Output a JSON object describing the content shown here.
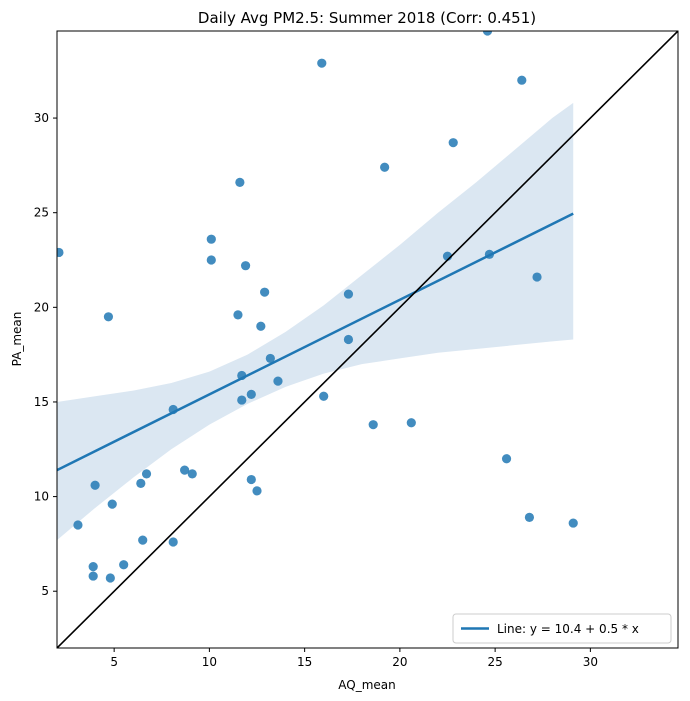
{
  "chart_data": {
    "type": "scatter",
    "title": "Daily Avg PM2.5: Summer 2018 (Corr: 0.451)",
    "xlabel": "AQ_mean",
    "ylabel": "PA_mean",
    "xlim": [
      2.0,
      34.6
    ],
    "ylim": [
      2.0,
      34.6
    ],
    "xticks": [
      5,
      10,
      15,
      20,
      25,
      30
    ],
    "yticks": [
      5,
      10,
      15,
      20,
      25,
      30
    ],
    "grid": false,
    "legend_position": "lower-right",
    "colors": {
      "points": "#2e7fb8",
      "regression_line": "#1f77b4",
      "confidence_band": "#dbe7f2",
      "identity_line": "#000000"
    },
    "points": [
      {
        "x": 2.1,
        "y": 22.9
      },
      {
        "x": 3.1,
        "y": 8.5
      },
      {
        "x": 3.9,
        "y": 5.8
      },
      {
        "x": 3.9,
        "y": 6.3
      },
      {
        "x": 4.0,
        "y": 10.6
      },
      {
        "x": 4.7,
        "y": 19.5
      },
      {
        "x": 4.8,
        "y": 5.7
      },
      {
        "x": 4.9,
        "y": 9.6
      },
      {
        "x": 5.5,
        "y": 6.4
      },
      {
        "x": 6.4,
        "y": 10.7
      },
      {
        "x": 6.5,
        "y": 7.7
      },
      {
        "x": 6.7,
        "y": 11.2
      },
      {
        "x": 8.1,
        "y": 14.6
      },
      {
        "x": 8.1,
        "y": 7.6
      },
      {
        "x": 8.7,
        "y": 11.4
      },
      {
        "x": 9.1,
        "y": 11.2
      },
      {
        "x": 10.1,
        "y": 22.5
      },
      {
        "x": 10.1,
        "y": 23.6
      },
      {
        "x": 11.5,
        "y": 19.6
      },
      {
        "x": 11.6,
        "y": 26.6
      },
      {
        "x": 11.7,
        "y": 16.4
      },
      {
        "x": 11.7,
        "y": 15.1
      },
      {
        "x": 11.9,
        "y": 22.2
      },
      {
        "x": 12.2,
        "y": 15.4
      },
      {
        "x": 12.2,
        "y": 10.9
      },
      {
        "x": 12.5,
        "y": 10.3
      },
      {
        "x": 12.7,
        "y": 19.0
      },
      {
        "x": 12.9,
        "y": 20.8
      },
      {
        "x": 13.2,
        "y": 17.3
      },
      {
        "x": 13.6,
        "y": 16.1
      },
      {
        "x": 15.9,
        "y": 32.9
      },
      {
        "x": 16.0,
        "y": 15.3
      },
      {
        "x": 17.3,
        "y": 20.7
      },
      {
        "x": 17.3,
        "y": 18.3
      },
      {
        "x": 18.6,
        "y": 13.8
      },
      {
        "x": 19.2,
        "y": 27.4
      },
      {
        "x": 20.6,
        "y": 13.9
      },
      {
        "x": 22.5,
        "y": 22.7
      },
      {
        "x": 22.8,
        "y": 28.7
      },
      {
        "x": 24.6,
        "y": 34.6
      },
      {
        "x": 24.7,
        "y": 22.8
      },
      {
        "x": 25.6,
        "y": 12.0
      },
      {
        "x": 26.4,
        "y": 32.0
      },
      {
        "x": 26.8,
        "y": 8.9
      },
      {
        "x": 27.2,
        "y": 21.6
      },
      {
        "x": 29.1,
        "y": 8.6
      }
    ],
    "regression": {
      "label": "Line: y = 10.4 + 0.5 * x",
      "intercept": 10.4,
      "slope": 0.5,
      "x_range": [
        2.0,
        29.1
      ],
      "band": [
        {
          "x": 2.0,
          "lower": 7.7,
          "upper": 15.0
        },
        {
          "x": 4.0,
          "lower": 9.4,
          "upper": 15.3
        },
        {
          "x": 6.0,
          "lower": 11.0,
          "upper": 15.6
        },
        {
          "x": 8.0,
          "lower": 12.5,
          "upper": 16.0
        },
        {
          "x": 10.0,
          "lower": 13.8,
          "upper": 16.6
        },
        {
          "x": 12.0,
          "lower": 14.9,
          "upper": 17.5
        },
        {
          "x": 14.0,
          "lower": 15.8,
          "upper": 18.7
        },
        {
          "x": 16.0,
          "lower": 16.5,
          "upper": 20.1
        },
        {
          "x": 18.0,
          "lower": 17.0,
          "upper": 21.7
        },
        {
          "x": 20.0,
          "lower": 17.3,
          "upper": 23.3
        },
        {
          "x": 22.0,
          "lower": 17.6,
          "upper": 25.0
        },
        {
          "x": 24.0,
          "lower": 17.8,
          "upper": 26.6
        },
        {
          "x": 26.0,
          "lower": 18.0,
          "upper": 28.3
        },
        {
          "x": 28.0,
          "lower": 18.2,
          "upper": 30.0
        },
        {
          "x": 29.1,
          "lower": 18.3,
          "upper": 30.8
        }
      ]
    },
    "identity_line": {
      "from": 2.0,
      "to": 34.6
    }
  }
}
